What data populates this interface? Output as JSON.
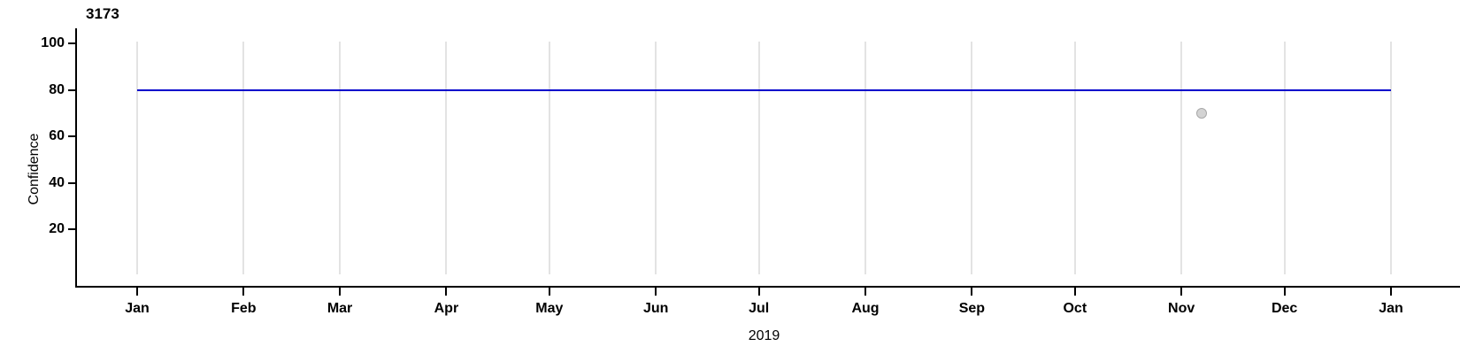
{
  "chart_data": {
    "type": "line",
    "title": "3173",
    "ylabel": "Confidence",
    "xlabel": "2019",
    "ylim": [
      0,
      100
    ],
    "yticks": [
      20,
      40,
      60,
      80,
      100
    ],
    "x_axis": {
      "tick_labels": [
        "Jan",
        "Feb",
        "Mar",
        "Apr",
        "May",
        "Jun",
        "Jul",
        "Aug",
        "Sep",
        "Oct",
        "Nov",
        "Dec",
        "Jan"
      ],
      "tick_day_offsets": [
        0,
        31,
        59,
        90,
        120,
        151,
        181,
        212,
        243,
        273,
        304,
        334,
        365
      ],
      "domain_days": 365
    },
    "grid": "vertical-monthly-lines",
    "legend": "none",
    "colors": {
      "line": "#0000cc",
      "gridline": "#e3e3e3",
      "axis": "#000000",
      "point_fill": "#d3d3d3",
      "point_stroke": "#a8a8a8"
    },
    "series": [
      {
        "name": "confidence-threshold-line",
        "type": "line",
        "color": "#0000cc",
        "points": [
          {
            "day": 0,
            "value": 80
          },
          {
            "day": 365,
            "value": 80
          }
        ]
      },
      {
        "name": "observation-point",
        "type": "scatter",
        "fill": "#d3d3d3",
        "stroke": "#a8a8a8",
        "points": [
          {
            "day": 310,
            "value": 70
          }
        ]
      }
    ]
  }
}
